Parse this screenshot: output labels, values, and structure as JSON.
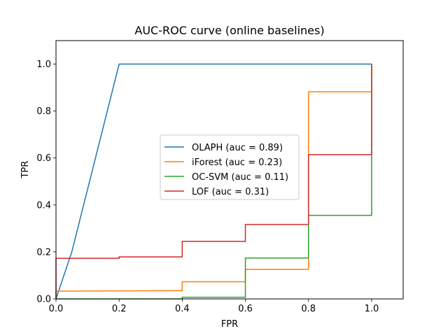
{
  "chart_data": {
    "type": "line",
    "title": "AUC-ROC curve (online baselines)",
    "xlabel": "FPR",
    "ylabel": "TPR",
    "xlim": [
      0.0,
      1.1
    ],
    "ylim": [
      0.0,
      1.1
    ],
    "xticks": [
      "0.0",
      "0.2",
      "0.4",
      "0.6",
      "0.8",
      "1.0"
    ],
    "yticks": [
      "0.0",
      "0.2",
      "0.4",
      "0.6",
      "0.8",
      "1.0"
    ],
    "grid": false,
    "legend_position": "center",
    "series": [
      {
        "name": "OLAPH (auc = 0.89)",
        "color": "#1f77b4",
        "x": [
          0.0,
          0.05,
          0.2,
          1.0,
          1.0
        ],
        "y": [
          0.0,
          0.2,
          1.0,
          1.0,
          1.0
        ]
      },
      {
        "name": "iForest (auc = 0.23)",
        "color": "#ff7f0e",
        "x": [
          0.0,
          0.0,
          0.4,
          0.4,
          0.6,
          0.6,
          0.8,
          0.8,
          1.0,
          1.0
        ],
        "y": [
          0.0,
          0.033,
          0.035,
          0.073,
          0.073,
          0.126,
          0.126,
          0.882,
          0.882,
          1.0
        ]
      },
      {
        "name": "OC-SVM (auc = 0.11)",
        "color": "#2ca02c",
        "x": [
          0.0,
          0.4,
          0.4,
          0.6,
          0.6,
          0.8,
          0.8,
          1.0,
          1.0
        ],
        "y": [
          0.0,
          0.0,
          0.007,
          0.007,
          0.174,
          0.174,
          0.356,
          0.356,
          1.0
        ]
      },
      {
        "name": "LOF (auc = 0.31)",
        "color": "#d62728",
        "x": [
          0.0,
          0.0,
          0.2,
          0.2,
          0.4,
          0.4,
          0.6,
          0.6,
          0.8,
          0.8,
          1.0,
          1.0
        ],
        "y": [
          0.0,
          0.173,
          0.173,
          0.179,
          0.179,
          0.245,
          0.245,
          0.317,
          0.317,
          0.614,
          0.614,
          1.0
        ]
      }
    ]
  }
}
